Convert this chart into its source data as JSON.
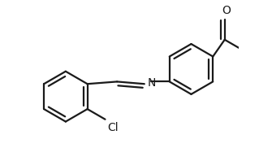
{
  "background_color": "#ffffff",
  "line_color": "#1a1a1a",
  "line_width": 1.6,
  "text_color": "#1a1a1a",
  "font_size": 9,
  "label_N": "N",
  "label_Cl": "Cl",
  "label_O": "O",
  "xlim": [
    -1.0,
    3.8
  ],
  "ylim": [
    -1.7,
    1.8
  ]
}
